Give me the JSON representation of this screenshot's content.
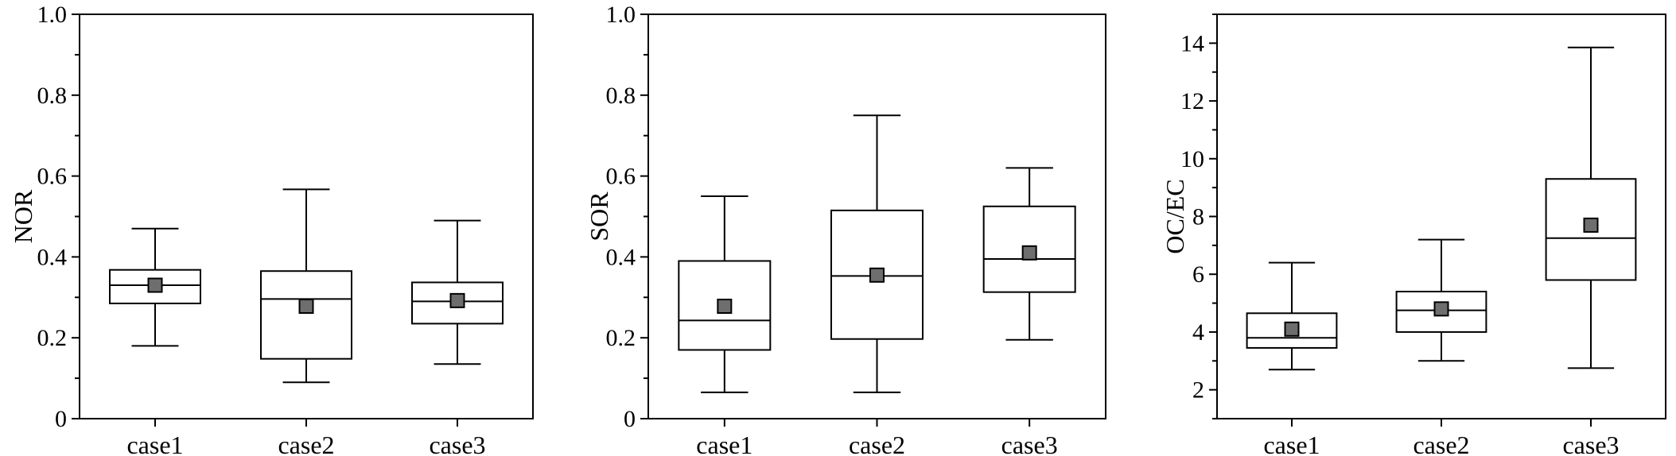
{
  "chart_data": [
    {
      "type": "box",
      "ylabel": "NOR",
      "ylim": [
        0,
        1.0
      ],
      "yticks": [
        0,
        0.2,
        0.4,
        0.6,
        0.8,
        1.0
      ],
      "ytick_labels": [
        "0",
        "0.2",
        "0.4",
        "0.6",
        "0.8",
        "1.0"
      ],
      "categories": [
        "case1",
        "case2",
        "case3"
      ],
      "boxes": [
        {
          "min": 0.18,
          "q1": 0.285,
          "median": 0.33,
          "q3": 0.368,
          "max": 0.47,
          "mean": 0.33
        },
        {
          "min": 0.09,
          "q1": 0.148,
          "median": 0.296,
          "q3": 0.365,
          "max": 0.567,
          "mean": 0.278
        },
        {
          "min": 0.135,
          "q1": 0.235,
          "median": 0.29,
          "q3": 0.337,
          "max": 0.49,
          "mean": 0.292
        }
      ]
    },
    {
      "type": "box",
      "ylabel": "SOR",
      "ylim": [
        0,
        1.0
      ],
      "yticks": [
        0,
        0.2,
        0.4,
        0.6,
        0.8,
        1.0
      ],
      "ytick_labels": [
        "0",
        "0.2",
        "0.4",
        "0.6",
        "0.8",
        "1.0"
      ],
      "categories": [
        "case1",
        "case2",
        "case3"
      ],
      "boxes": [
        {
          "min": 0.065,
          "q1": 0.17,
          "median": 0.243,
          "q3": 0.39,
          "max": 0.55,
          "mean": 0.278
        },
        {
          "min": 0.065,
          "q1": 0.197,
          "median": 0.353,
          "q3": 0.515,
          "max": 0.75,
          "mean": 0.355
        },
        {
          "min": 0.195,
          "q1": 0.313,
          "median": 0.395,
          "q3": 0.525,
          "max": 0.62,
          "mean": 0.41
        }
      ]
    },
    {
      "type": "box",
      "ylabel": "OC/EC",
      "ylim": [
        1,
        15
      ],
      "yticks": [
        2,
        4,
        6,
        8,
        10,
        12,
        14
      ],
      "ytick_labels": [
        "2",
        "4",
        "6",
        "8",
        "10",
        "12",
        "14"
      ],
      "categories": [
        "case1",
        "case2",
        "case3"
      ],
      "boxes": [
        {
          "min": 2.7,
          "q1": 3.45,
          "median": 3.8,
          "q3": 4.65,
          "max": 6.4,
          "mean": 4.1
        },
        {
          "min": 3.0,
          "q1": 4.0,
          "median": 4.75,
          "q3": 5.4,
          "max": 7.2,
          "mean": 4.8
        },
        {
          "min": 2.75,
          "q1": 5.8,
          "median": 7.25,
          "q3": 9.3,
          "max": 13.85,
          "mean": 7.7
        }
      ]
    }
  ]
}
